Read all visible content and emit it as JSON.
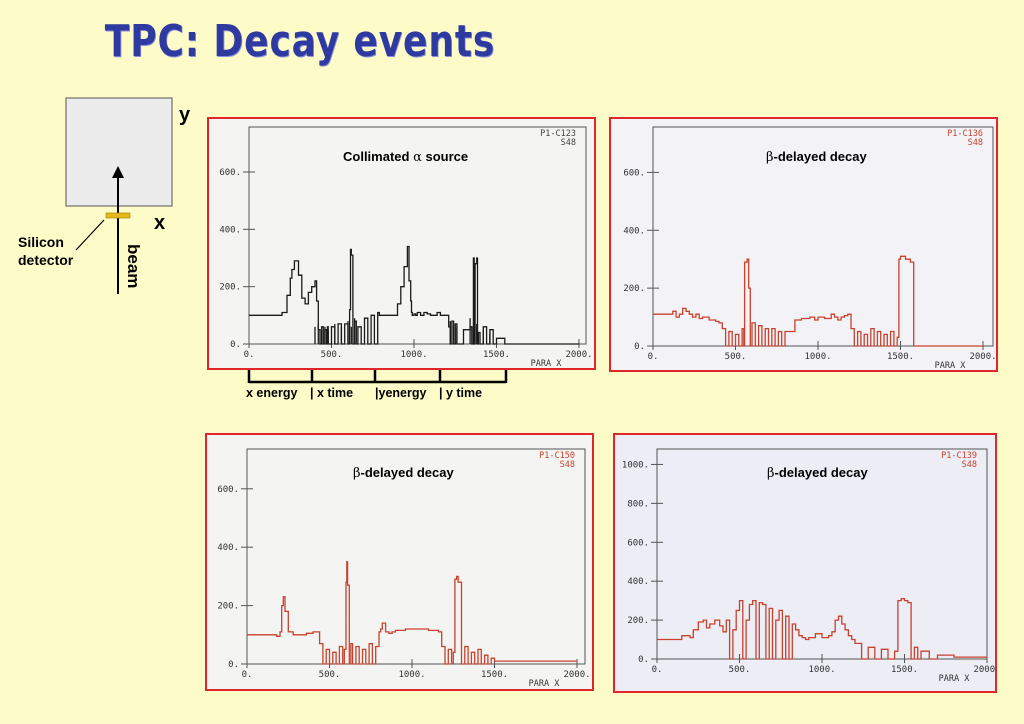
{
  "slide": {
    "title": "TPC: Decay events"
  },
  "diagram": {
    "y_label": "y",
    "x_label": "x",
    "detector_label_line1": "Silicon",
    "detector_label_line2": "detector",
    "beam_label": "beam",
    "detector_color": "#e8b81a",
    "box_fill": "#ececec"
  },
  "segments": {
    "labels": [
      "x energy",
      "| x time",
      "|yenergy",
      "| y time"
    ]
  },
  "colors": {
    "frame_border": "#e0262b",
    "black_trace": "#1a1a1a",
    "red_trace": "#c8422e",
    "red_tick_text": "#c8422e"
  },
  "chart_data": [
    {
      "type": "line",
      "title_prefix": "Collimated ",
      "title_symbol": "α",
      "title_suffix": " source",
      "code_line1": "P1-C123",
      "code_line2": "S48",
      "xlabel": "PARA X",
      "xticks": [
        "0.",
        "500.",
        "1000.",
        "1500.",
        "2000."
      ],
      "yticks": [
        "0.",
        "200.",
        "400.",
        "600."
      ],
      "xlim": [
        0,
        2000
      ],
      "ylim": [
        0,
        750
      ],
      "color": "black",
      "series": [
        {
          "x": [
            0,
            180,
            200,
            230,
            250,
            260,
            275,
            300,
            320,
            340,
            360,
            380,
            400,
            410,
            420,
            430,
            440,
            450,
            460,
            470,
            475,
            480,
            500,
            520,
            540,
            560,
            580,
            600,
            610,
            615,
            620,
            630,
            640,
            650,
            660,
            680,
            700,
            720,
            740,
            760,
            780,
            790,
            800,
            880,
            900,
            920,
            940,
            960,
            970,
            980,
            985,
            990,
            1000,
            1010,
            1020,
            1040,
            1060,
            1080,
            1100,
            1120,
            1140,
            1160,
            1180,
            1200,
            1210,
            1220,
            1230,
            1240,
            1250,
            1260,
            1300,
            1340,
            1350,
            1360,
            1365,
            1370,
            1380,
            1385,
            1390,
            1400,
            1420,
            1440,
            1460,
            1480,
            1500,
            1550,
            1560,
            1600,
            2000
          ],
          "y": [
            100,
            100,
            110,
            170,
            230,
            260,
            290,
            240,
            160,
            140,
            180,
            200,
            220,
            150,
            50,
            0,
            60,
            0,
            50,
            0,
            60,
            0,
            60,
            0,
            70,
            0,
            70,
            0,
            120,
            330,
            310,
            0,
            80,
            0,
            60,
            0,
            90,
            0,
            100,
            0,
            110,
            100,
            100,
            100,
            140,
            200,
            270,
            340,
            220,
            150,
            110,
            100,
            105,
            100,
            110,
            100,
            110,
            105,
            100,
            100,
            110,
            100,
            100,
            100,
            60,
            0,
            80,
            0,
            70,
            0,
            50,
            60,
            0,
            300,
            0,
            280,
            300,
            0,
            40,
            0,
            60,
            0,
            50,
            0,
            20,
            0,
            0,
            0,
            0
          ],
          "spikes_x": [
            400,
            420,
            440,
            460,
            480,
            520,
            560,
            600,
            620,
            640,
            1220,
            1240,
            1260,
            1340,
            1360,
            1380,
            1420,
            1460
          ],
          "spikes_h": [
            60,
            70,
            50,
            60,
            50,
            70,
            60,
            80,
            60,
            90,
            80,
            70,
            60,
            90,
            60,
            70,
            50,
            40
          ]
        }
      ]
    },
    {
      "type": "line",
      "title_prefix": "",
      "title_symbol": "β",
      "title_suffix": "-delayed decay",
      "code_line1": "P1-C136",
      "code_line2": "S48",
      "xlabel": "PARA X",
      "xticks": [
        "0.",
        "500.",
        "1000.",
        "1500.",
        "2000."
      ],
      "yticks": [
        "0.",
        "200.",
        "400.",
        "600."
      ],
      "xlim": [
        0,
        2000
      ],
      "ylim": [
        0,
        750
      ],
      "color": "red",
      "series": [
        {
          "x": [
            0,
            100,
            120,
            140,
            160,
            180,
            200,
            220,
            240,
            260,
            280,
            300,
            340,
            380,
            400,
            420,
            440,
            460,
            480,
            500,
            520,
            540,
            550,
            555,
            570,
            580,
            590,
            600,
            620,
            640,
            660,
            680,
            700,
            720,
            740,
            760,
            780,
            800,
            860,
            900,
            950,
            980,
            1000,
            1040,
            1080,
            1100,
            1120,
            1140,
            1160,
            1180,
            1200,
            1220,
            1240,
            1260,
            1280,
            1300,
            1320,
            1340,
            1360,
            1380,
            1400,
            1420,
            1440,
            1460,
            1480,
            1490,
            1500,
            1530,
            1560,
            1580,
            1600,
            2000
          ],
          "y": [
            110,
            110,
            120,
            100,
            110,
            130,
            120,
            110,
            100,
            110,
            95,
            100,
            90,
            85,
            80,
            60,
            0,
            50,
            0,
            40,
            0,
            60,
            0,
            290,
            300,
            200,
            0,
            80,
            0,
            70,
            0,
            60,
            0,
            60,
            0,
            50,
            0,
            50,
            90,
            95,
            100,
            90,
            100,
            95,
            110,
            100,
            90,
            100,
            105,
            110,
            60,
            0,
            50,
            0,
            40,
            0,
            60,
            0,
            50,
            0,
            40,
            0,
            50,
            0,
            30,
            300,
            310,
            300,
            290,
            0,
            0,
            0
          ],
          "spikes_x": [],
          "spikes_h": []
        }
      ]
    },
    {
      "type": "line",
      "title_prefix": "",
      "title_symbol": "β",
      "title_suffix": "-delayed decay",
      "code_line1": "P1-C150",
      "code_line2": "S48",
      "xlabel": "PARA X",
      "xticks": [
        "0.",
        "500.",
        "1000.",
        "1500.",
        "2000."
      ],
      "yticks": [
        "0.",
        "200.",
        "400.",
        "600."
      ],
      "xlim": [
        0,
        2000
      ],
      "ylim": [
        0,
        750
      ],
      "color": "red",
      "series": [
        {
          "x": [
            0,
            150,
            180,
            200,
            210,
            220,
            230,
            250,
            280,
            320,
            360,
            400,
            420,
            440,
            460,
            480,
            500,
            520,
            540,
            560,
            580,
            590,
            600,
            605,
            610,
            620,
            630,
            640,
            660,
            680,
            700,
            720,
            740,
            760,
            780,
            800,
            810,
            820,
            840,
            860,
            880,
            900,
            960,
            1000,
            1100,
            1160,
            1180,
            1200,
            1220,
            1240,
            1250,
            1260,
            1270,
            1280,
            1300,
            1320,
            1340,
            1360,
            1380,
            1400,
            1420,
            1440,
            1460,
            1480,
            1500,
            1600,
            2000
          ],
          "y": [
            100,
            100,
            95,
            110,
            200,
            230,
            180,
            110,
            100,
            100,
            105,
            110,
            110,
            70,
            0,
            50,
            0,
            40,
            0,
            60,
            0,
            50,
            280,
            350,
            270,
            0,
            70,
            0,
            60,
            0,
            50,
            0,
            70,
            0,
            60,
            110,
            120,
            140,
            110,
            105,
            110,
            115,
            120,
            120,
            115,
            110,
            60,
            0,
            50,
            0,
            40,
            290,
            300,
            280,
            0,
            60,
            0,
            40,
            0,
            50,
            0,
            30,
            0,
            20,
            10,
            10,
            10
          ],
          "spikes_x": [],
          "spikes_h": []
        }
      ]
    },
    {
      "type": "line",
      "title_prefix": "",
      "title_symbol": "β",
      "title_suffix": "-delayed decay",
      "code_line1": "P1-C139",
      "code_line2": "S48",
      "xlabel": "PARA X",
      "xticks": [
        "0.",
        "500.",
        "1000.",
        "1500.",
        "2000."
      ],
      "yticks": [
        "0.",
        "200.",
        "400.",
        "600.",
        "800.",
        "1000."
      ],
      "xlim": [
        0,
        2000
      ],
      "ylim": [
        0,
        1100
      ],
      "color": "red",
      "series": [
        {
          "x": [
            0,
            100,
            150,
            200,
            220,
            250,
            280,
            300,
            320,
            350,
            380,
            400,
            420,
            440,
            460,
            480,
            500,
            520,
            540,
            560,
            580,
            600,
            620,
            640,
            660,
            680,
            700,
            720,
            740,
            760,
            780,
            800,
            820,
            840,
            860,
            880,
            900,
            920,
            960,
            1000,
            1040,
            1060,
            1080,
            1100,
            1120,
            1140,
            1160,
            1180,
            1200,
            1240,
            1280,
            1320,
            1360,
            1400,
            1440,
            1460,
            1480,
            1500,
            1520,
            1540,
            1560,
            1580,
            1600,
            1650,
            1700,
            1800,
            1900,
            2000
          ],
          "y": [
            100,
            100,
            120,
            110,
            150,
            190,
            200,
            160,
            180,
            200,
            170,
            140,
            200,
            0,
            150,
            250,
            300,
            0,
            200,
            280,
            300,
            0,
            290,
            280,
            0,
            260,
            0,
            200,
            250,
            0,
            220,
            0,
            180,
            150,
            120,
            110,
            100,
            110,
            130,
            110,
            120,
            140,
            200,
            220,
            180,
            150,
            120,
            100,
            80,
            0,
            60,
            0,
            50,
            0,
            40,
            300,
            310,
            300,
            290,
            0,
            60,
            0,
            40,
            0,
            20,
            10,
            10,
            10
          ],
          "spikes_x": [],
          "spikes_h": []
        }
      ]
    }
  ]
}
